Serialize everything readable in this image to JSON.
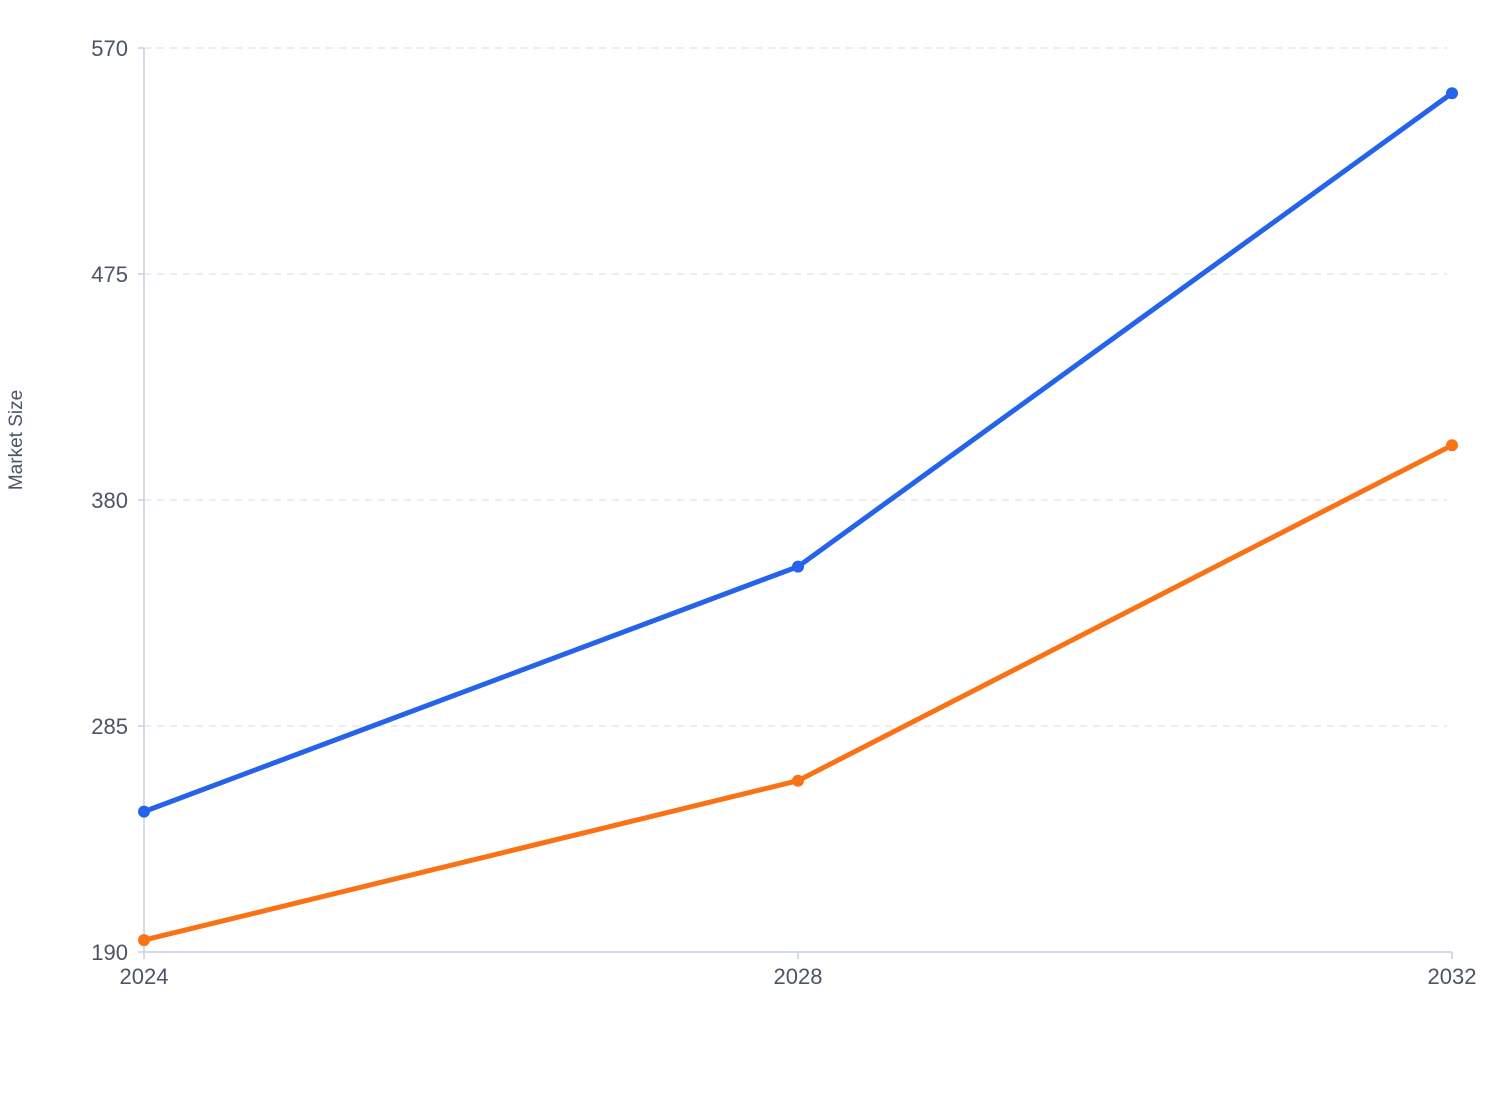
{
  "chart_data": {
    "type": "line",
    "title": "",
    "xlabel": "",
    "ylabel": "Market Size",
    "categories": [
      "2024",
      "2028",
      "2032"
    ],
    "x": [
      2024,
      2028,
      2032
    ],
    "y_ticks": [
      190,
      285,
      380,
      475,
      570
    ],
    "y_tick_labels": [
      "190",
      "285",
      "380",
      "475",
      "570"
    ],
    "ylim": [
      190,
      570
    ],
    "xlim": [
      2024,
      2032
    ],
    "grid": "horizontal dashed",
    "legend": "none",
    "series": [
      {
        "values": [
          249,
          352,
          551
        ],
        "color": "#2563eb"
      },
      {
        "values": [
          195,
          262,
          403
        ],
        "color": "#f97316"
      }
    ]
  }
}
